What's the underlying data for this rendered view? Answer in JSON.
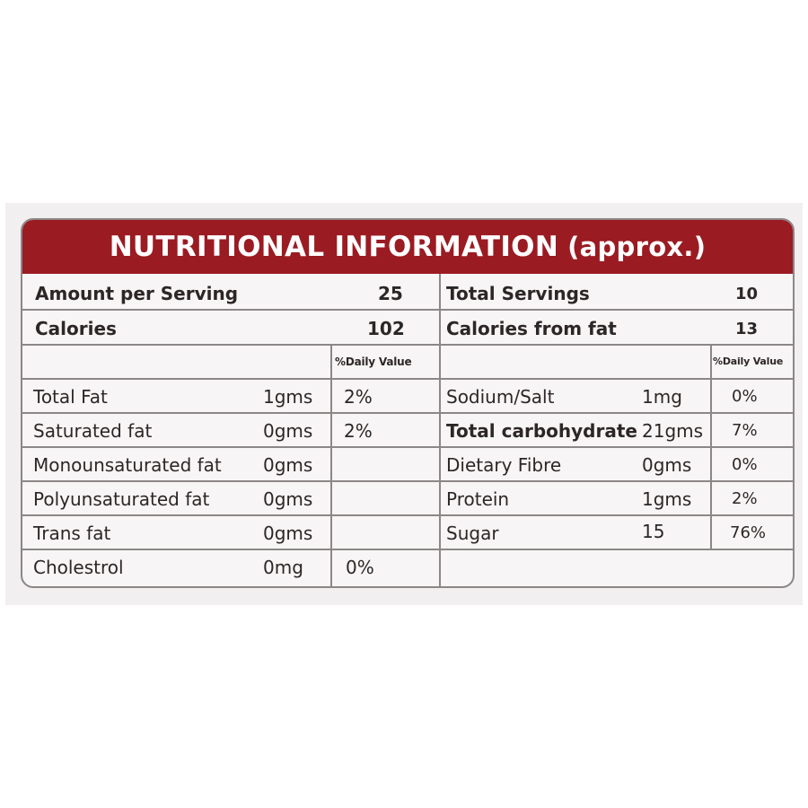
{
  "colors": {
    "header_bg": "#9b1b22",
    "header_text": "#ffffff",
    "border": "#8c8787",
    "text": "#2d2626",
    "panel_bg": "#f7f5f5"
  },
  "title": {
    "main": "NUTRITIONAL INFORMATION",
    "suffix": "(approx.)"
  },
  "summary": {
    "amount_per_serving_label": "Amount per Serving",
    "amount_per_serving_value": "25",
    "calories_label": "Calories",
    "calories_value": "102",
    "total_servings_label": "Total Servings",
    "total_servings_value": "10",
    "calories_from_fat_label": "Calories from fat",
    "calories_from_fat_value": "13"
  },
  "daily_value_header_left": "%Daily Value",
  "daily_value_header_right": "%Daily Value",
  "left_rows": [
    {
      "name": "Total Fat",
      "amount": "1gms",
      "dv": "2%"
    },
    {
      "name": "Saturated fat",
      "amount": "0gms",
      "dv": "2%"
    },
    {
      "name": "Monounsaturated fat",
      "amount": "0gms",
      "dv": ""
    },
    {
      "name": "Polyunsaturated fat",
      "amount": "0gms",
      "dv": ""
    },
    {
      "name": "Trans fat",
      "amount": "0gms",
      "dv": ""
    },
    {
      "name": "Cholestrol",
      "amount": "0mg",
      "dv": "0%"
    }
  ],
  "right_rows": [
    {
      "name": "Sodium/Salt",
      "amount": "1mg",
      "dv": "0%"
    },
    {
      "name": "Total carbohydrate",
      "amount": "21gms",
      "dv": "7%"
    },
    {
      "name": "Dietary Fibre",
      "amount": "0gms",
      "dv": "0%"
    },
    {
      "name": "Protein",
      "amount": "1gms",
      "dv": "2%"
    },
    {
      "name": "Sugar",
      "amount": "15",
      "dv": "76%"
    }
  ]
}
